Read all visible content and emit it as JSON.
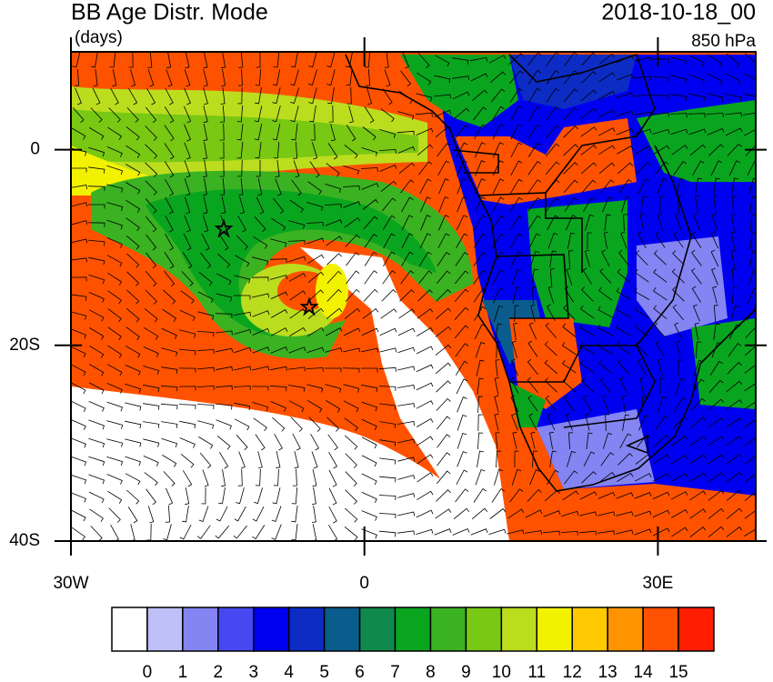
{
  "header": {
    "title": "BB Age Distr. Mode",
    "units": "(days)",
    "date": "2018-10-18_00",
    "level": "850 hPa"
  },
  "map": {
    "lonlim": [
      -30,
      40
    ],
    "latlim": [
      -40,
      10
    ],
    "lonticks": [
      {
        "value": -30,
        "label": "30W"
      },
      0,
      {
        "value": 30,
        "label": "30E"
      }
    ],
    "latticks": [
      0,
      {
        "value": -20,
        "label": "20S"
      },
      {
        "value": -40,
        "label": "40S"
      }
    ]
  },
  "colorbar": {
    "labels": [
      0,
      1,
      2,
      3,
      4,
      5,
      6,
      7,
      8,
      9,
      10,
      11,
      12,
      13,
      14,
      15
    ],
    "colors": [
      "#ffffff",
      "#c0c0f8",
      "#8484f2",
      "#4848f2",
      "#0000f0",
      "#0c2cc4",
      "#0a5c8c",
      "#108a4c",
      "#0aa51e",
      "#3ab222",
      "#78c814",
      "#bcdd1e",
      "#f2f200",
      "#ffc800",
      "#ff9400",
      "#ff5200",
      "#ff1e00"
    ]
  }
}
